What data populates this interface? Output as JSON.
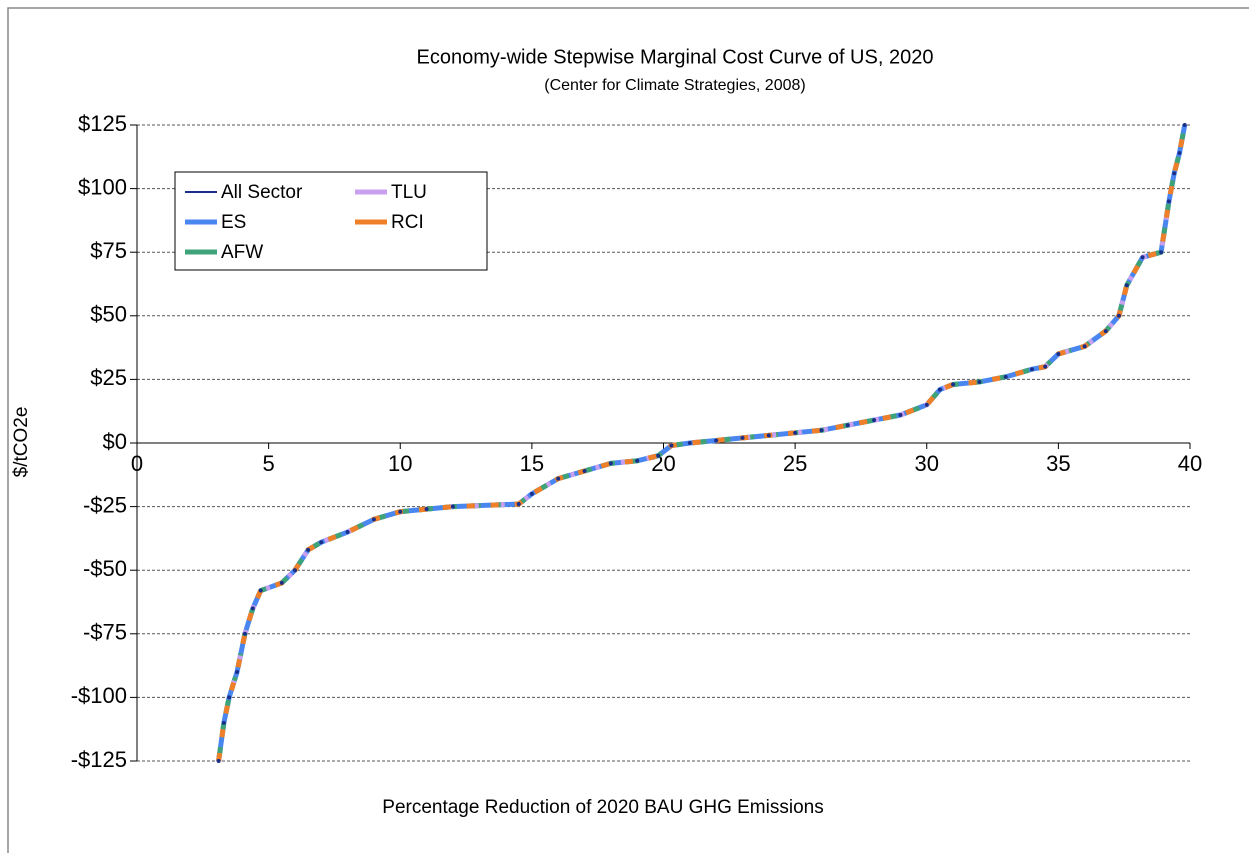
{
  "chart_data": {
    "type": "line",
    "title": "Economy-wide Stepwise Marginal Cost Curve of US, 2020",
    "subtitle": "(Center for Climate Strategies, 2008)",
    "x_label": "Percentage Reduction of 2020 BAU GHG Emissions",
    "y_label": "$/tCO2e",
    "x": [
      3.1,
      3.3,
      3.5,
      3.8,
      4.1,
      4.4,
      4.7,
      5.5,
      6,
      6.5,
      7,
      8,
      9,
      10,
      11,
      12,
      14.5,
      15,
      16,
      17,
      18,
      19,
      19.8,
      20.3,
      21,
      22,
      23,
      24,
      25,
      26,
      27,
      28,
      29,
      30,
      30.5,
      31,
      32,
      33,
      34,
      34.5,
      35,
      36,
      36.8,
      37.3,
      37.6,
      38.2,
      38.9,
      39.2,
      39.4,
      39.6,
      39.8
    ],
    "series": [
      {
        "name": "All Sector",
        "color": "#1a2f8a",
        "values": [
          -125,
          -110,
          -100,
          -90,
          -75,
          -65,
          -58,
          -55,
          -50,
          -42,
          -39,
          -35,
          -30,
          -27,
          -26,
          -25,
          -24,
          -20,
          -14,
          -11,
          -8,
          -7,
          -5,
          -1,
          0,
          1,
          2,
          3,
          4,
          5,
          7,
          9,
          11,
          15,
          21,
          23,
          24,
          26,
          29,
          30,
          35,
          38,
          44,
          50,
          62,
          73,
          75,
          95,
          106,
          114,
          125
        ]
      },
      {
        "name": "ES",
        "color": "#4a86f0",
        "values": [
          -125,
          -110,
          -100,
          -90,
          -75,
          -65,
          -58,
          -55,
          -50,
          -42,
          -39,
          -35,
          -30,
          -27,
          -26,
          -25,
          -24,
          -20,
          -14,
          -11,
          -8,
          -7,
          -5,
          -1,
          0,
          1,
          2,
          3,
          4,
          5,
          7,
          9,
          11,
          15,
          21,
          23,
          24,
          26,
          29,
          30,
          35,
          38,
          44,
          50,
          62,
          73,
          75,
          95,
          106,
          114,
          125
        ]
      },
      {
        "name": "AFW",
        "color": "#3fa37a",
        "values": [
          -125,
          -110,
          -100,
          -90,
          -75,
          -65,
          -58,
          -55,
          -50,
          -42,
          -39,
          -35,
          -30,
          -27,
          -26,
          -25,
          -24,
          -20,
          -14,
          -11,
          -8,
          -7,
          -5,
          -1,
          0,
          1,
          2,
          3,
          4,
          5,
          7,
          9,
          11,
          15,
          21,
          23,
          24,
          26,
          29,
          30,
          35,
          38,
          44,
          50,
          62,
          73,
          75,
          95,
          106,
          114,
          125
        ]
      },
      {
        "name": "TLU",
        "color": "#c9a0f0",
        "values": [
          -125,
          -110,
          -100,
          -90,
          -75,
          -65,
          -58,
          -55,
          -50,
          -42,
          -39,
          -35,
          -30,
          -27,
          -26,
          -25,
          -24,
          -20,
          -14,
          -11,
          -8,
          -7,
          -5,
          -1,
          0,
          1,
          2,
          3,
          4,
          5,
          7,
          9,
          11,
          15,
          21,
          23,
          24,
          26,
          29,
          30,
          35,
          38,
          44,
          50,
          62,
          73,
          75,
          95,
          106,
          114,
          125
        ]
      },
      {
        "name": "RCI",
        "color": "#f07f2a",
        "values": [
          -125,
          -110,
          -100,
          -90,
          -75,
          -65,
          -58,
          -55,
          -50,
          -42,
          -39,
          -35,
          -30,
          -27,
          -26,
          -25,
          -24,
          -20,
          -14,
          -11,
          -8,
          -7,
          -5,
          -1,
          0,
          1,
          2,
          3,
          4,
          5,
          7,
          9,
          11,
          15,
          21,
          23,
          24,
          26,
          29,
          30,
          35,
          38,
          44,
          50,
          62,
          73,
          75,
          95,
          106,
          114,
          125
        ]
      }
    ],
    "xlim": [
      0,
      40
    ],
    "xticks": [
      0,
      5,
      10,
      15,
      20,
      25,
      30,
      35,
      40
    ],
    "ylim": [
      -125,
      125
    ],
    "yticks": [
      {
        "value": -125,
        "label": "-$125"
      },
      {
        "value": -100,
        "label": "-$100"
      },
      {
        "value": -75,
        "label": "-$75"
      },
      {
        "value": -50,
        "label": "-$50"
      },
      {
        "value": -25,
        "label": "-$25"
      },
      {
        "value": 0,
        "label": "$0"
      },
      {
        "value": 25,
        "label": "$25"
      },
      {
        "value": 50,
        "label": "$50"
      },
      {
        "value": 75,
        "label": "$75"
      },
      {
        "value": 100,
        "label": "$100"
      },
      {
        "value": 125,
        "label": "$125"
      }
    ],
    "grid": true,
    "legend": "upper left"
  }
}
